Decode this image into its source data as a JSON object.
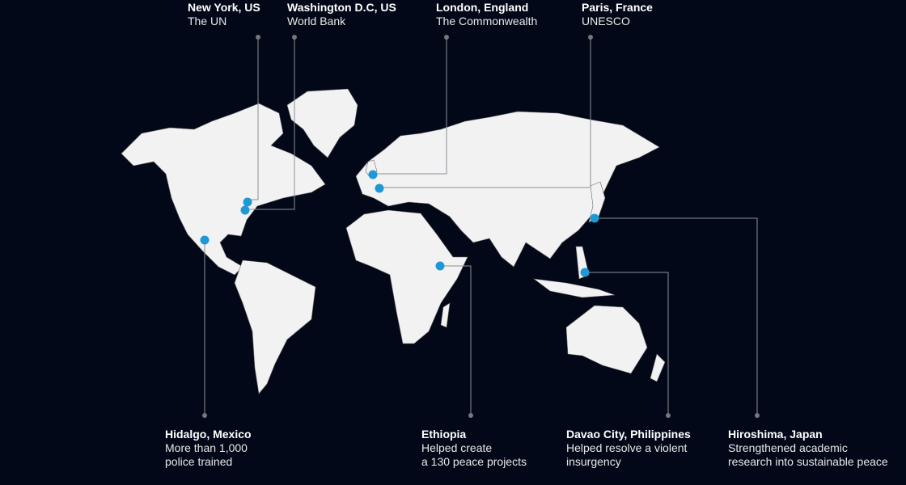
{
  "colors": {
    "background": "#020817",
    "land": "#f2f2f2",
    "border": "#555555",
    "marker": "#1f98d6",
    "leader": "#8a8f99"
  },
  "locations": [
    {
      "title": "New York, US",
      "desc": [
        "The UN"
      ]
    },
    {
      "title": "Washington D.C, US",
      "desc": [
        "World Bank"
      ]
    },
    {
      "title": "London, England",
      "desc": [
        "The Commonwealth"
      ]
    },
    {
      "title": "Paris, France",
      "desc": [
        "UNESCO"
      ]
    },
    {
      "title": "Hidalgo, Mexico",
      "desc": [
        "More than 1,000",
        "police trained"
      ]
    },
    {
      "title": "Ethiopia",
      "desc": [
        "Helped create",
        "a 130 peace projects"
      ]
    },
    {
      "title": "Davao City, Philippines",
      "desc": [
        "Helped resolve a violent",
        "insurgency"
      ]
    },
    {
      "title": "Hiroshima, Japan",
      "desc": [
        "Strengthened academic",
        "research into sustainable peace"
      ]
    }
  ]
}
